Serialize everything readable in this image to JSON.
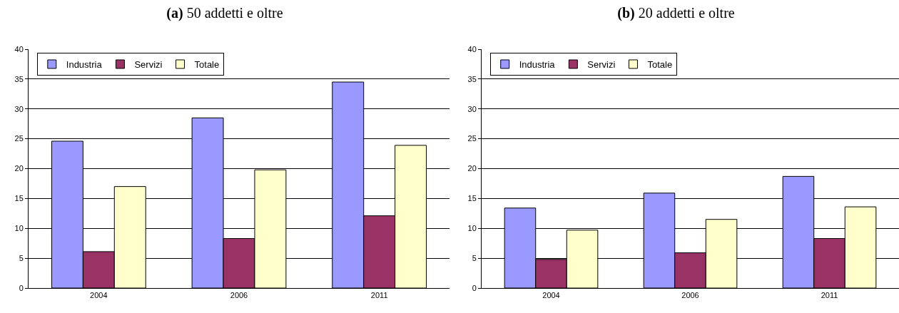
{
  "chart_data": [
    {
      "type": "bar",
      "title": "(a) 50 addetti e oltre",
      "categories": [
        "2004",
        "2006",
        "2011"
      ],
      "series": [
        {
          "name": "Industria",
          "color": "#9999ff",
          "values": [
            24.6,
            28.5,
            34.5
          ]
        },
        {
          "name": "Servizi",
          "color": "#993366",
          "values": [
            6.1,
            8.3,
            12.1
          ]
        },
        {
          "name": "Totale",
          "color": "#ffffcc",
          "values": [
            17.0,
            19.8,
            23.9
          ]
        }
      ],
      "ylim": [
        0,
        40
      ],
      "yticks": [
        0,
        5,
        10,
        15,
        20,
        25,
        30,
        35,
        40
      ],
      "grid": "y",
      "legend": "top left"
    },
    {
      "type": "bar",
      "title": "(b) 20 addetti e oltre",
      "categories": [
        "2004",
        "2006",
        "2011"
      ],
      "series": [
        {
          "name": "Industria",
          "color": "#9999ff",
          "values": [
            13.4,
            15.9,
            18.7
          ]
        },
        {
          "name": "Servizi",
          "color": "#993366",
          "values": [
            4.8,
            5.9,
            8.3
          ]
        },
        {
          "name": "Totale",
          "color": "#ffffcc",
          "values": [
            9.7,
            11.5,
            13.6
          ]
        }
      ],
      "ylim": [
        0,
        40
      ],
      "yticks": [
        0,
        5,
        10,
        15,
        20,
        25,
        30,
        35,
        40
      ],
      "grid": "y",
      "legend": "top left"
    }
  ]
}
